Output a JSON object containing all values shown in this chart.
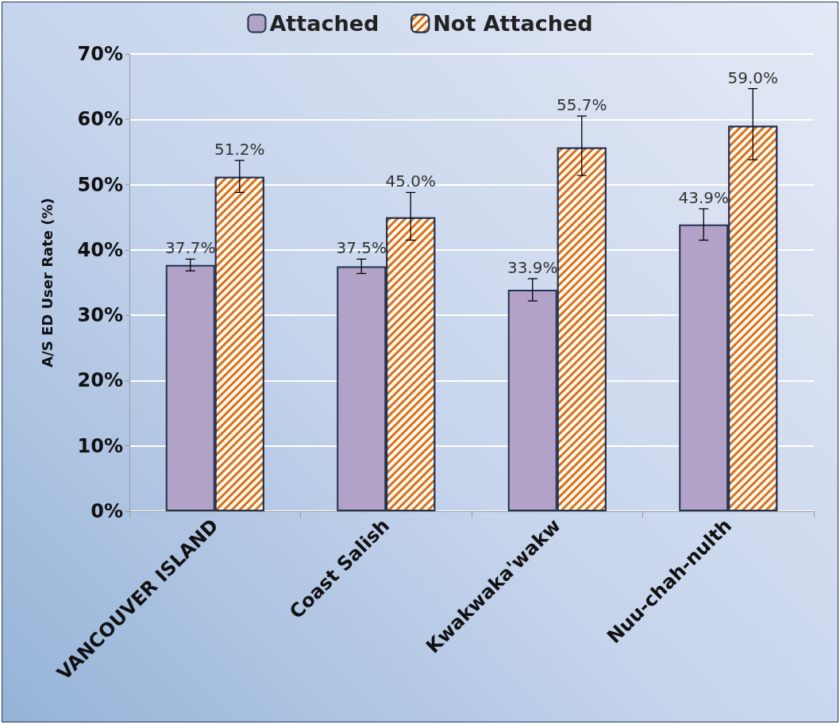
{
  "chart_data": {
    "type": "bar",
    "ylabel": "A/S ED User Rate (%)",
    "categories": [
      "VANCOUVER ISLAND",
      "Coast Salish",
      "Kwakwaka'wakw",
      "Nuu-chah-nulth"
    ],
    "series": [
      {
        "name": "Attached",
        "color": "#b3a2c7",
        "values": [
          37.7,
          37.5,
          33.9,
          43.9
        ],
        "errors": [
          [
            36.8,
            38.6
          ],
          [
            36.4,
            38.6
          ],
          [
            32.2,
            35.6
          ],
          [
            41.5,
            46.3
          ]
        ],
        "value_labels": [
          "37.7%",
          "37.5%",
          "33.9%",
          "43.9%"
        ]
      },
      {
        "name": "Not Attached",
        "color": "#e36c09",
        "values": [
          51.2,
          45.0,
          55.7,
          59.0
        ],
        "errors": [
          [
            48.8,
            53.7
          ],
          [
            41.5,
            48.8
          ],
          [
            51.4,
            60.5
          ],
          [
            53.8,
            64.7
          ]
        ],
        "value_labels": [
          "51.2%",
          "45.0%",
          "55.7%",
          "59.0%"
        ]
      }
    ],
    "ylim": [
      0,
      70
    ],
    "yticks": [
      {
        "value": 0,
        "label": "0%"
      },
      {
        "value": 10,
        "label": "10%"
      },
      {
        "value": 20,
        "label": "20%"
      },
      {
        "value": 30,
        "label": "30%"
      },
      {
        "value": 40,
        "label": "40%"
      },
      {
        "value": 50,
        "label": "50%"
      },
      {
        "value": 60,
        "label": "60%"
      },
      {
        "value": 70,
        "label": "70%"
      }
    ],
    "grid": "y",
    "legend": "top"
  }
}
